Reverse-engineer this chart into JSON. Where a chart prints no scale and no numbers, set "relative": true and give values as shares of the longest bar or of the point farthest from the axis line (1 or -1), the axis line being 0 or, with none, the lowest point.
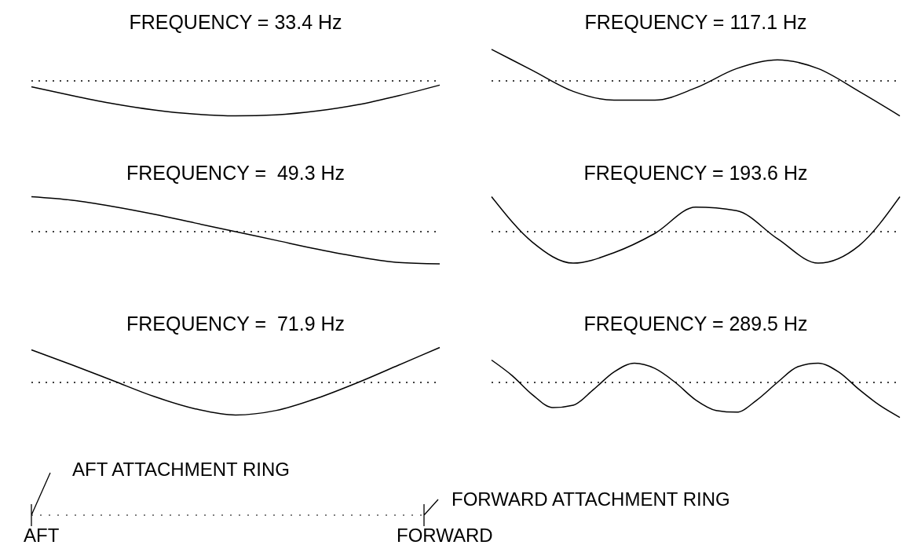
{
  "chart_data": [
    {
      "type": "line",
      "title": "FREQUENCY = 33.4 Hz",
      "relative": true,
      "categories": [
        null,
        null,
        null,
        null,
        null,
        null,
        null,
        null,
        null,
        null,
        null
      ],
      "values": [
        -0.17,
        -0.42,
        -0.65,
        -0.83,
        -0.95,
        -1,
        -0.97,
        -0.86,
        -0.68,
        -0.42,
        -0.12
      ],
      "color": "#000000",
      "ref_lines": [
        {
          "axis": "y",
          "value": 0,
          "line_style": "dotted"
        }
      ]
    },
    {
      "type": "line",
      "title": "FREQUENCY = 117.1 Hz",
      "relative": true,
      "categories": [
        null,
        null,
        null,
        null,
        null,
        null,
        null,
        null,
        null,
        null,
        null
      ],
      "values": [
        0.9,
        0.3,
        -0.3,
        -0.55,
        -0.55,
        -0.2,
        0.35,
        0.6,
        0.35,
        -0.3,
        -1
      ],
      "color": "#000000",
      "ref_lines": [
        {
          "axis": "y",
          "value": 0,
          "line_style": "dotted"
        }
      ]
    },
    {
      "type": "line",
      "title": "FREQUENCY =  49.3 Hz",
      "relative": true,
      "categories": [
        null,
        null,
        null,
        null,
        null,
        null,
        null,
        null,
        null,
        null,
        null
      ],
      "values": [
        1,
        0.9,
        0.72,
        0.5,
        0.25,
        0,
        -0.25,
        -0.5,
        -0.72,
        -0.88,
        -0.92
      ],
      "color": "#000000",
      "ref_lines": [
        {
          "axis": "y",
          "value": 0,
          "line_style": "dotted"
        }
      ]
    },
    {
      "type": "line",
      "title": "FREQUENCY = 193.6 Hz",
      "relative": true,
      "categories": [
        null,
        null,
        null,
        null,
        null,
        null,
        null,
        null,
        null,
        null,
        null
      ],
      "values": [
        1,
        -0.3,
        -0.9,
        -0.6,
        -0.05,
        0.7,
        0.6,
        -0.2,
        -0.9,
        -0.4,
        1
      ],
      "color": "#000000",
      "ref_lines": [
        {
          "axis": "y",
          "value": 0,
          "line_style": "dotted"
        }
      ]
    },
    {
      "type": "line",
      "title": "FREQUENCY =  71.9 Hz",
      "relative": true,
      "categories": [
        null,
        null,
        null,
        null,
        null,
        null,
        null,
        null,
        null,
        null,
        null
      ],
      "values": [
        0.93,
        0.5,
        0.05,
        -0.4,
        -0.75,
        -0.93,
        -0.8,
        -0.45,
        0,
        0.5,
        1
      ],
      "color": "#000000",
      "ref_lines": [
        {
          "axis": "y",
          "value": 0,
          "line_style": "dotted"
        }
      ]
    },
    {
      "type": "line",
      "title": "FREQUENCY = 289.5 Hz",
      "relative": true,
      "categories": [
        null,
        null,
        null,
        null,
        null,
        null,
        null,
        null,
        null,
        null,
        null,
        null,
        null,
        null,
        null,
        null,
        null,
        null,
        null,
        null,
        null
      ],
      "values": [
        0.64,
        0.2,
        -0.35,
        -0.72,
        -0.65,
        -0.2,
        0.3,
        0.55,
        0.4,
        0,
        -0.5,
        -0.8,
        -0.85,
        -0.5,
        0,
        0.45,
        0.55,
        0.3,
        -0.2,
        -0.65,
        -1
      ],
      "color": "#000000",
      "ref_lines": [
        {
          "axis": "y",
          "value": 0,
          "line_style": "dotted"
        }
      ]
    },
    {
      "type": "other",
      "annotations": [
        "AFT ATTACHMENT RING",
        "FORWARD ATTACHMENT RING",
        "AFT",
        "FORWARD"
      ]
    }
  ]
}
